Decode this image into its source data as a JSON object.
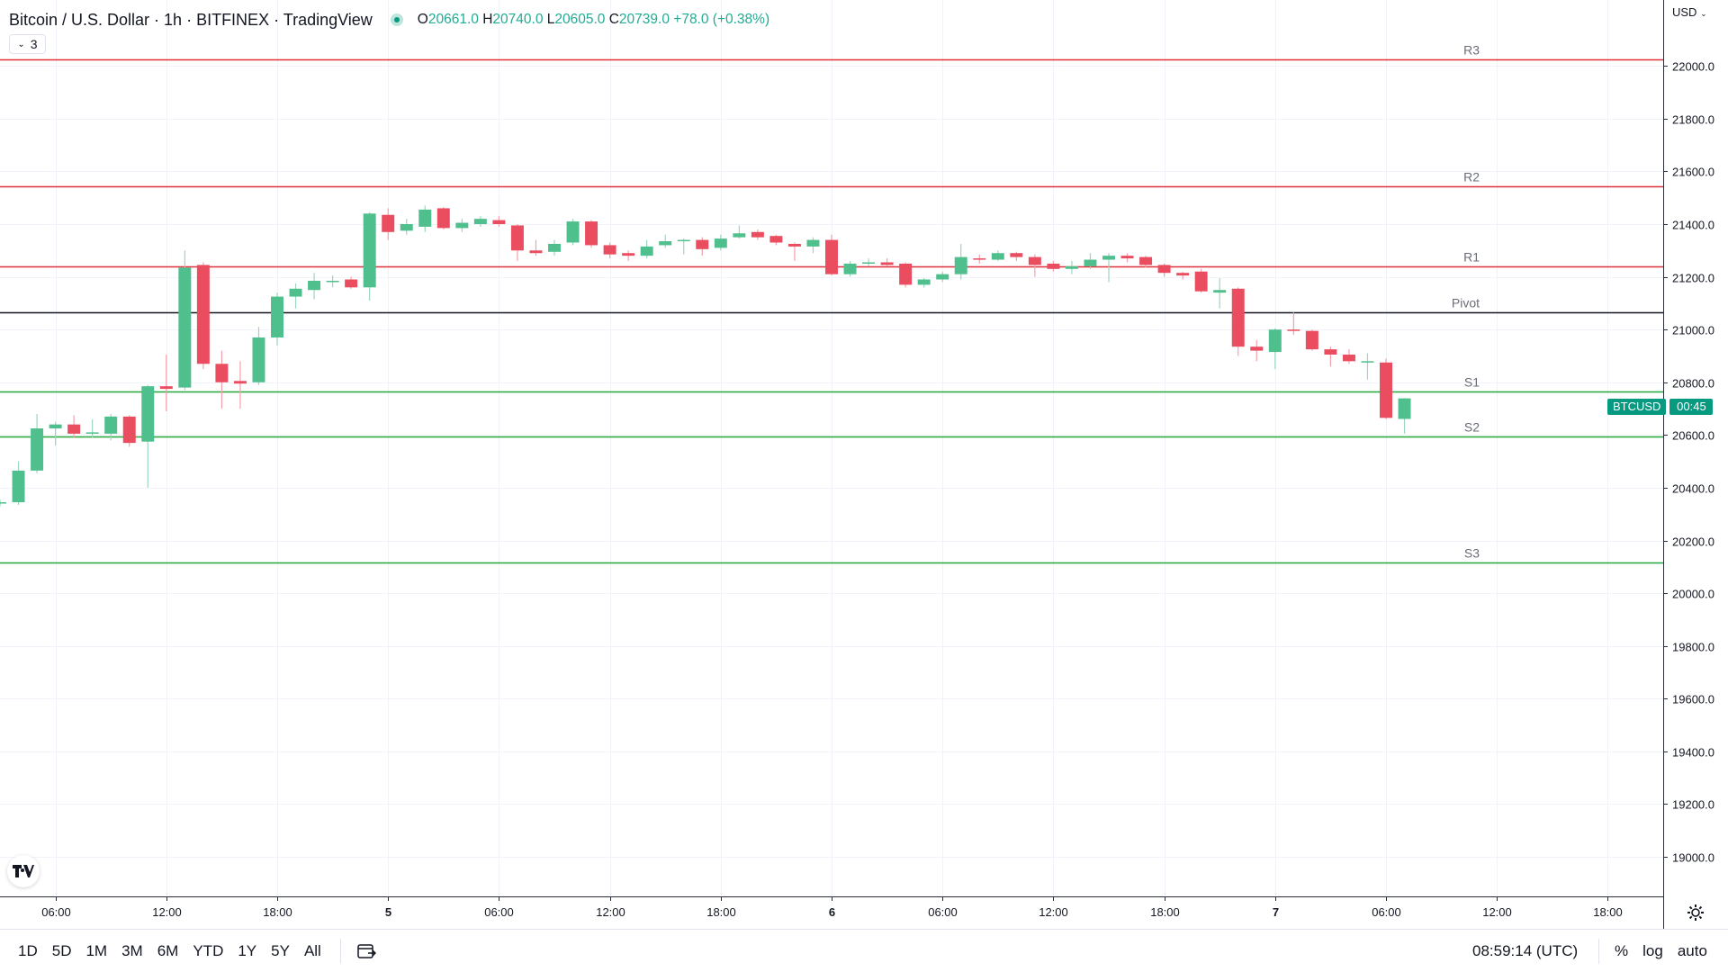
{
  "header": {
    "symbol_title": "Bitcoin / U.S. Dollar · 1h · BITFINEX · TradingView",
    "open_key": "O",
    "open": "20661.0",
    "high_key": "H",
    "high": "20740.0",
    "low_key": "L",
    "low": "20605.0",
    "close_key": "C",
    "close": "20739.0",
    "change": "+78.0 (+0.38%)",
    "indicators_count": "3"
  },
  "price_axis": {
    "currency": "USD"
  },
  "price_tag": {
    "symbol": "BTCUSD",
    "countdown": "00:45"
  },
  "bottom_bar": {
    "ranges": [
      "1D",
      "5D",
      "1M",
      "3M",
      "6M",
      "YTD",
      "1Y",
      "5Y",
      "All"
    ],
    "time": "08:59:14 (UTC)",
    "percent": "%",
    "log": "log",
    "auto": "auto"
  },
  "colors": {
    "up": "#4fbf8d",
    "down": "#ea4d5f",
    "resistance": "#e0313d",
    "support": "#22a83a",
    "pivot": "#131722"
  },
  "icons": {
    "tv_logo": "tradingview-logo-icon",
    "date_range": "calendar-goto-icon",
    "settings": "gear-icon"
  },
  "chart_data": {
    "type": "candlestick",
    "timeframe": "1h",
    "ylim": [
      18850,
      22250
    ],
    "y_ticks": [
      19000,
      19200,
      19400,
      19600,
      19800,
      20000,
      20200,
      20400,
      20600,
      20800,
      21000,
      21200,
      21400,
      21600,
      21800,
      22000
    ],
    "y_tick_labels": [
      "19000.0",
      "19200.0",
      "19400.0",
      "19600.0",
      "19800.0",
      "20000.0",
      "20200.0",
      "20400.0",
      "20600.0",
      "20800.0",
      "21000.0",
      "21200.0",
      "21400.0",
      "21600.0",
      "21800.0",
      "22000.0"
    ],
    "x_axis": {
      "start": "4 Jun 2022 03:00",
      "end": "7 Jun 2022 21:00",
      "ticks": [
        "4 Jun 2022 06:00",
        "4 Jun 2022 12:00",
        "4 Jun 2022 18:00",
        "5 Jun 2022 00:00",
        "5 Jun 2022 06:00",
        "5 Jun 2022 12:00",
        "5 Jun 2022 18:00",
        "6 Jun 2022 00:00",
        "6 Jun 2022 06:00",
        "6 Jun 2022 12:00",
        "6 Jun 2022 18:00",
        "7 Jun 2022 00:00",
        "7 Jun 2022 06:00",
        "7 Jun 2022 12:00",
        "7 Jun 2022 18:00"
      ],
      "tick_labels": [
        "06:00",
        "12:00",
        "18:00",
        "5",
        "06:00",
        "12:00",
        "18:00",
        "6",
        "06:00",
        "12:00",
        "18:00",
        "7",
        "06:00",
        "12:00",
        "18:00"
      ]
    },
    "levels": [
      {
        "name": "R3",
        "value": 22025,
        "kind": "resistance"
      },
      {
        "name": "R2",
        "value": 21545,
        "kind": "resistance"
      },
      {
        "name": "R1",
        "value": 21240,
        "kind": "resistance"
      },
      {
        "name": "Pivot",
        "value": 21065,
        "kind": "pivot"
      },
      {
        "name": "S1",
        "value": 20765,
        "kind": "support"
      },
      {
        "name": "S2",
        "value": 20595,
        "kind": "support"
      },
      {
        "name": "S3",
        "value": 20115,
        "kind": "support"
      }
    ],
    "candles": [
      {
        "t": "4 Jun 2022 03:00",
        "o": 20343,
        "h": 20355,
        "l": 20330,
        "c": 20345
      },
      {
        "t": "4 Jun 2022 04:00",
        "o": 20345,
        "h": 20500,
        "l": 20335,
        "c": 20465
      },
      {
        "t": "4 Jun 2022 05:00",
        "o": 20465,
        "h": 20680,
        "l": 20455,
        "c": 20625
      },
      {
        "t": "4 Jun 2022 06:00",
        "o": 20625,
        "h": 20650,
        "l": 20560,
        "c": 20640
      },
      {
        "t": "4 Jun 2022 07:00",
        "o": 20640,
        "h": 20675,
        "l": 20590,
        "c": 20605
      },
      {
        "t": "4 Jun 2022 08:00",
        "o": 20605,
        "h": 20660,
        "l": 20590,
        "c": 20610
      },
      {
        "t": "4 Jun 2022 09:00",
        "o": 20605,
        "h": 20680,
        "l": 20580,
        "c": 20670
      },
      {
        "t": "4 Jun 2022 10:00",
        "o": 20670,
        "h": 20675,
        "l": 20555,
        "c": 20570
      },
      {
        "t": "4 Jun 2022 11:00",
        "o": 20575,
        "h": 20790,
        "l": 20400,
        "c": 20785
      },
      {
        "t": "4 Jun 2022 12:00",
        "o": 20785,
        "h": 20905,
        "l": 20690,
        "c": 20775
      },
      {
        "t": "4 Jun 2022 13:00",
        "o": 20780,
        "h": 21300,
        "l": 20770,
        "c": 21235
      },
      {
        "t": "4 Jun 2022 14:00",
        "o": 21245,
        "h": 21255,
        "l": 20850,
        "c": 20870
      },
      {
        "t": "4 Jun 2022 15:00",
        "o": 20870,
        "h": 20920,
        "l": 20700,
        "c": 20800
      },
      {
        "t": "4 Jun 2022 16:00",
        "o": 20805,
        "h": 20880,
        "l": 20700,
        "c": 20795
      },
      {
        "t": "4 Jun 2022 17:00",
        "o": 20800,
        "h": 21010,
        "l": 20790,
        "c": 20970
      },
      {
        "t": "4 Jun 2022 18:00",
        "o": 20970,
        "h": 21140,
        "l": 20940,
        "c": 21125
      },
      {
        "t": "4 Jun 2022 19:00",
        "o": 21125,
        "h": 21175,
        "l": 21080,
        "c": 21155
      },
      {
        "t": "4 Jun 2022 20:00",
        "o": 21150,
        "h": 21215,
        "l": 21115,
        "c": 21185
      },
      {
        "t": "4 Jun 2022 21:00",
        "o": 21180,
        "h": 21205,
        "l": 21160,
        "c": 21185
      },
      {
        "t": "4 Jun 2022 22:00",
        "o": 21190,
        "h": 21200,
        "l": 21155,
        "c": 21160
      },
      {
        "t": "4 Jun 2022 23:00",
        "o": 21160,
        "h": 21445,
        "l": 21110,
        "c": 21440
      },
      {
        "t": "5 Jun 2022 00:00",
        "o": 21435,
        "h": 21460,
        "l": 21340,
        "c": 21370
      },
      {
        "t": "5 Jun 2022 01:00",
        "o": 21375,
        "h": 21420,
        "l": 21360,
        "c": 21400
      },
      {
        "t": "5 Jun 2022 02:00",
        "o": 21390,
        "h": 21470,
        "l": 21370,
        "c": 21455
      },
      {
        "t": "5 Jun 2022 03:00",
        "o": 21460,
        "h": 21465,
        "l": 21380,
        "c": 21385
      },
      {
        "t": "5 Jun 2022 04:00",
        "o": 21385,
        "h": 21420,
        "l": 21370,
        "c": 21405
      },
      {
        "t": "5 Jun 2022 05:00",
        "o": 21400,
        "h": 21430,
        "l": 21390,
        "c": 21420
      },
      {
        "t": "5 Jun 2022 06:00",
        "o": 21415,
        "h": 21430,
        "l": 21390,
        "c": 21400
      },
      {
        "t": "5 Jun 2022 07:00",
        "o": 21395,
        "h": 21400,
        "l": 21260,
        "c": 21300
      },
      {
        "t": "5 Jun 2022 08:00",
        "o": 21300,
        "h": 21340,
        "l": 21280,
        "c": 21290
      },
      {
        "t": "5 Jun 2022 09:00",
        "o": 21295,
        "h": 21340,
        "l": 21280,
        "c": 21325
      },
      {
        "t": "5 Jun 2022 10:00",
        "o": 21330,
        "h": 21420,
        "l": 21320,
        "c": 21410
      },
      {
        "t": "5 Jun 2022 11:00",
        "o": 21410,
        "h": 21415,
        "l": 21310,
        "c": 21320
      },
      {
        "t": "5 Jun 2022 12:00",
        "o": 21320,
        "h": 21330,
        "l": 21270,
        "c": 21285
      },
      {
        "t": "5 Jun 2022 13:00",
        "o": 21290,
        "h": 21300,
        "l": 21260,
        "c": 21280
      },
      {
        "t": "5 Jun 2022 14:00",
        "o": 21280,
        "h": 21340,
        "l": 21270,
        "c": 21315
      },
      {
        "t": "5 Jun 2022 15:00",
        "o": 21320,
        "h": 21360,
        "l": 21310,
        "c": 21335
      },
      {
        "t": "5 Jun 2022 16:00",
        "o": 21335,
        "h": 21345,
        "l": 21285,
        "c": 21340
      },
      {
        "t": "5 Jun 2022 17:00",
        "o": 21340,
        "h": 21350,
        "l": 21280,
        "c": 21305
      },
      {
        "t": "5 Jun 2022 18:00",
        "o": 21310,
        "h": 21360,
        "l": 21300,
        "c": 21345
      },
      {
        "t": "5 Jun 2022 19:00",
        "o": 21350,
        "h": 21395,
        "l": 21345,
        "c": 21365
      },
      {
        "t": "5 Jun 2022 20:00",
        "o": 21370,
        "h": 21380,
        "l": 21340,
        "c": 21350
      },
      {
        "t": "5 Jun 2022 21:00",
        "o": 21355,
        "h": 21360,
        "l": 21320,
        "c": 21330
      },
      {
        "t": "5 Jun 2022 22:00",
        "o": 21325,
        "h": 21330,
        "l": 21260,
        "c": 21315
      },
      {
        "t": "5 Jun 2022 23:00",
        "o": 21315,
        "h": 21350,
        "l": 21290,
        "c": 21340
      },
      {
        "t": "6 Jun 2022 00:00",
        "o": 21340,
        "h": 21360,
        "l": 21205,
        "c": 21210
      },
      {
        "t": "6 Jun 2022 01:00",
        "o": 21210,
        "h": 21260,
        "l": 21200,
        "c": 21250
      },
      {
        "t": "6 Jun 2022 02:00",
        "o": 21250,
        "h": 21270,
        "l": 21240,
        "c": 21255
      },
      {
        "t": "6 Jun 2022 03:00",
        "o": 21255,
        "h": 21270,
        "l": 21240,
        "c": 21245
      },
      {
        "t": "6 Jun 2022 04:00",
        "o": 21250,
        "h": 21255,
        "l": 21160,
        "c": 21170
      },
      {
        "t": "6 Jun 2022 05:00",
        "o": 21170,
        "h": 21195,
        "l": 21160,
        "c": 21190
      },
      {
        "t": "6 Jun 2022 06:00",
        "o": 21190,
        "h": 21220,
        "l": 21180,
        "c": 21210
      },
      {
        "t": "6 Jun 2022 07:00",
        "o": 21210,
        "h": 21325,
        "l": 21190,
        "c": 21275
      },
      {
        "t": "6 Jun 2022 08:00",
        "o": 21270,
        "h": 21285,
        "l": 21250,
        "c": 21265
      },
      {
        "t": "6 Jun 2022 09:00",
        "o": 21265,
        "h": 21300,
        "l": 21260,
        "c": 21290
      },
      {
        "t": "6 Jun 2022 10:00",
        "o": 21290,
        "h": 21295,
        "l": 21260,
        "c": 21275
      },
      {
        "t": "6 Jun 2022 11:00",
        "o": 21275,
        "h": 21285,
        "l": 21200,
        "c": 21245
      },
      {
        "t": "6 Jun 2022 12:00",
        "o": 21250,
        "h": 21260,
        "l": 21220,
        "c": 21230
      },
      {
        "t": "6 Jun 2022 13:00",
        "o": 21230,
        "h": 21260,
        "l": 21210,
        "c": 21240
      },
      {
        "t": "6 Jun 2022 14:00",
        "o": 21240,
        "h": 21290,
        "l": 21230,
        "c": 21265
      },
      {
        "t": "6 Jun 2022 15:00",
        "o": 21265,
        "h": 21290,
        "l": 21180,
        "c": 21280
      },
      {
        "t": "6 Jun 2022 16:00",
        "o": 21280,
        "h": 21290,
        "l": 21255,
        "c": 21270
      },
      {
        "t": "6 Jun 2022 17:00",
        "o": 21275,
        "h": 21280,
        "l": 21235,
        "c": 21245
      },
      {
        "t": "6 Jun 2022 18:00",
        "o": 21245,
        "h": 21250,
        "l": 21200,
        "c": 21215
      },
      {
        "t": "6 Jun 2022 19:00",
        "o": 21215,
        "h": 21220,
        "l": 21190,
        "c": 21205
      },
      {
        "t": "6 Jun 2022 20:00",
        "o": 21220,
        "h": 21230,
        "l": 21140,
        "c": 21145
      },
      {
        "t": "6 Jun 2022 21:00",
        "o": 21140,
        "h": 21195,
        "l": 21080,
        "c": 21150
      },
      {
        "t": "6 Jun 2022 22:00",
        "o": 21155,
        "h": 21160,
        "l": 20900,
        "c": 20935
      },
      {
        "t": "6 Jun 2022 23:00",
        "o": 20935,
        "h": 20960,
        "l": 20880,
        "c": 20920
      },
      {
        "t": "7 Jun 2022 00:00",
        "o": 20915,
        "h": 21005,
        "l": 20850,
        "c": 21000
      },
      {
        "t": "7 Jun 2022 01:00",
        "o": 21000,
        "h": 21065,
        "l": 20980,
        "c": 20995
      },
      {
        "t": "7 Jun 2022 02:00",
        "o": 20995,
        "h": 21000,
        "l": 20920,
        "c": 20925
      },
      {
        "t": "7 Jun 2022 03:00",
        "o": 20925,
        "h": 20935,
        "l": 20860,
        "c": 20905
      },
      {
        "t": "7 Jun 2022 04:00",
        "o": 20905,
        "h": 20925,
        "l": 20870,
        "c": 20880
      },
      {
        "t": "7 Jun 2022 05:00",
        "o": 20875,
        "h": 20910,
        "l": 20810,
        "c": 20880
      },
      {
        "t": "7 Jun 2022 06:00",
        "o": 20875,
        "h": 20890,
        "l": 20660,
        "c": 20665
      },
      {
        "t": "7 Jun 2022 07:00",
        "o": 20661,
        "h": 20740,
        "l": 20605,
        "c": 20739
      }
    ]
  }
}
